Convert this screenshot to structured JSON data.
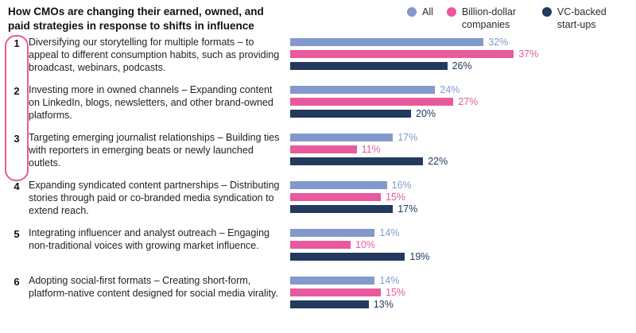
{
  "chart_data": {
    "type": "bar",
    "orientation": "horizontal",
    "title": "How CMOs are changing their earned, owned, and paid strategies in response to shifts in influence",
    "legend_position": "top-right",
    "grid": false,
    "value_suffix": "%",
    "xlim": [
      0,
      40
    ],
    "legend": [
      {
        "name": "All",
        "color": "#8398cb"
      },
      {
        "name": "Billion-dollar companies",
        "color": "#e85a9c"
      },
      {
        "name": "VC-backed start-ups",
        "color": "#223a5e"
      }
    ],
    "categories": [
      "Diversifying our storytelling for multiple formats – to appeal to different consumption habits, such as providing broadcast, webinars, podcasts.",
      "Investing more in owned channels – Expanding content on LinkedIn, blogs, newsletters, and other brand-owned platforms.",
      "Targeting emerging journalist relationships – Building ties with reporters in emerging beats or newly launched outlets.",
      "Expanding syndicated content partnerships – Distributing stories through paid or co-branded media syndication to extend reach.",
      "Integrating influencer and analyst outreach – Engaging non-traditional voices with growing market influence.",
      "Adopting social-first formats – Creating short-form, platform-native content designed for social media virality."
    ],
    "category_numbers": [
      "1",
      "2",
      "3",
      "4",
      "5",
      "6"
    ],
    "series": [
      {
        "name": "All",
        "color": "#8398cb",
        "values": [
          32,
          24,
          17,
          16,
          14,
          14
        ]
      },
      {
        "name": "Billion-dollar companies",
        "color": "#e85a9c",
        "values": [
          37,
          27,
          11,
          15,
          10,
          15
        ]
      },
      {
        "name": "VC-backed start-ups",
        "color": "#223a5e",
        "values": [
          26,
          20,
          22,
          17,
          19,
          13
        ]
      }
    ],
    "highlighted_rows": [
      1,
      2,
      3
    ],
    "highlight_color": "#e85a9c"
  }
}
